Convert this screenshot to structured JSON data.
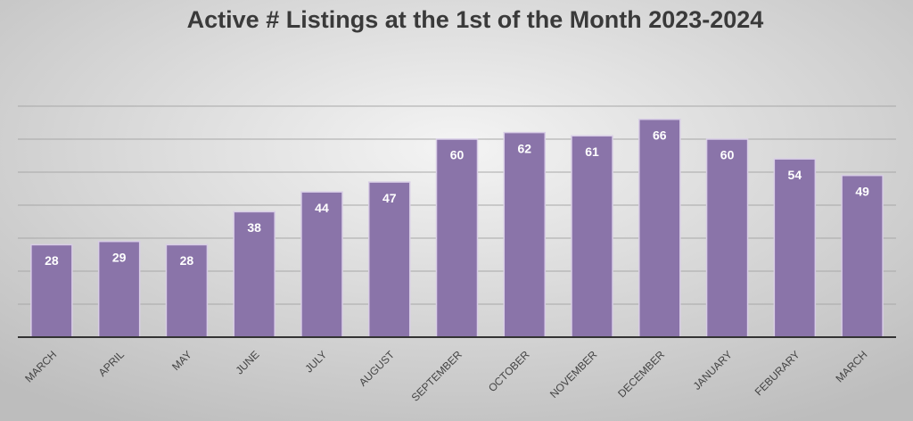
{
  "chart_data": {
    "type": "bar",
    "title": "Active # Listings at the 1st of the Month 2023-2024",
    "categories": [
      "MARCH",
      "APRIL",
      "MAY",
      "JUNE",
      "JULY",
      "AUGUST",
      "SEPTEMBER",
      "OCTOBER",
      "NOVEMBER",
      "DECEMBER",
      "JANUARY",
      "FEBURARY",
      "MARCH"
    ],
    "values": [
      28,
      29,
      28,
      38,
      44,
      47,
      60,
      62,
      61,
      66,
      60,
      54,
      49
    ],
    "color": "#8a74a9",
    "ylim": [
      0,
      70
    ],
    "yticks": [
      0,
      10,
      20,
      30,
      40,
      50,
      60,
      70
    ],
    "grid": true
  }
}
